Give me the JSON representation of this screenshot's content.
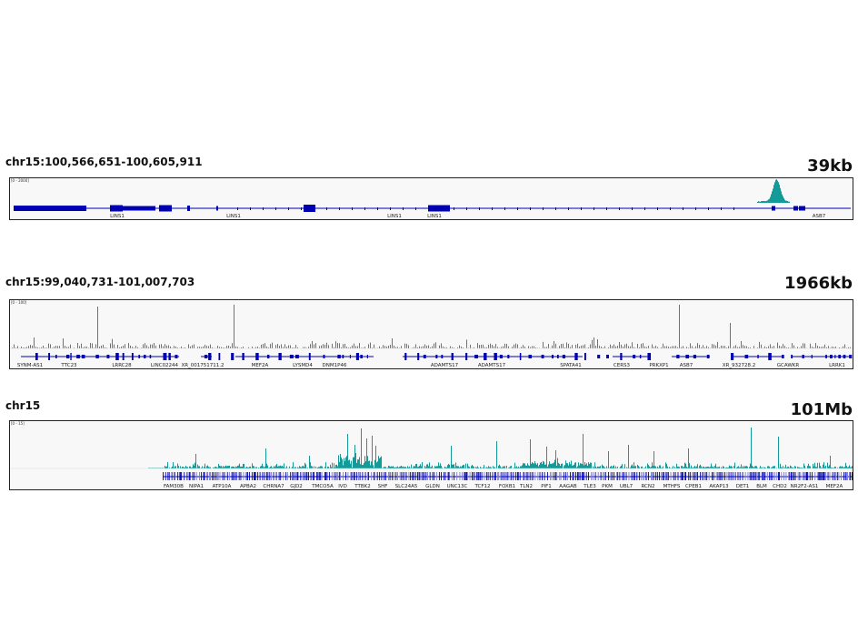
{
  "colors": {
    "signal": "#139a99",
    "gene": "#0000b3",
    "background": "#f8f8f8"
  },
  "panels": [
    {
      "locus": "chr15:100,566,651-100,605,911",
      "span": "39kb",
      "range": "[0 - 2000]",
      "genes": [
        "LINS1",
        "LINS1",
        "LINS1",
        "LINS1",
        "ASB7"
      ]
    },
    {
      "locus": "chr15:99,040,731-101,007,703",
      "span": "1966kb",
      "range": "[0 - 100]",
      "genes": [
        "SYNM-AS1",
        "TTC23",
        "LRRC28",
        "LINC02244",
        "XR_001751711.2",
        "MEF2A",
        "LYSMD4",
        "DNM1P46",
        "ADAMTS17",
        "ADAMTS17",
        "SPATA41",
        "CERS3",
        "PRKXP1",
        "ASB7",
        "XR_932728.2",
        "GCAWKR",
        "LRRK1"
      ]
    },
    {
      "locus": "chr15",
      "span": "101Mb",
      "range": "[0 - 15]",
      "genes": [
        "FAM30B",
        "NIPA1",
        "ATP10A",
        "APBA2",
        "CHRNA7",
        "GJD2",
        "TMCO5A",
        "IVD",
        "TTBK2",
        "SHF",
        "SLC24A5",
        "GLDN",
        "UNC13C",
        "TCF12",
        "FOXB1",
        "TLN2",
        "PIF1",
        "AAGAB",
        "TLE3",
        "PKM",
        "UBL7",
        "RCN2",
        "MTHFS",
        "CPEB1",
        "AKAP13",
        "DET1",
        "BLM",
        "CHD2",
        "NR2F2-AS1",
        "MEF2A"
      ]
    }
  ]
}
